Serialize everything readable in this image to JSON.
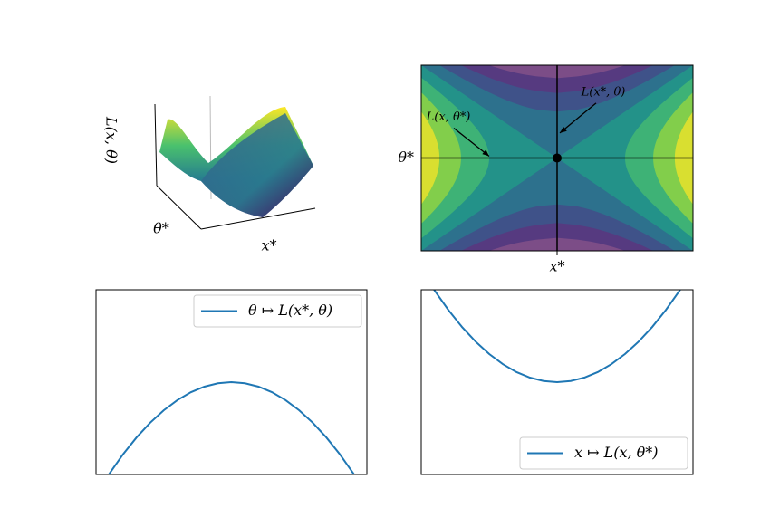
{
  "chart_data": [
    {
      "type": "surface",
      "zlabel": "L(x, θ)",
      "xlabel": "x*",
      "ylabel": "θ*"
    },
    {
      "type": "contour",
      "xlim": [
        -1,
        1
      ],
      "ylim": [
        -1,
        1
      ],
      "levels": [
        -1,
        -0.75,
        -0.5,
        -0.25,
        0,
        0.25,
        0.5,
        0.75,
        1
      ],
      "colors": [
        "#440154",
        "#46327e",
        "#365c8d",
        "#277f8e",
        "#1fa187",
        "#4ac16d",
        "#a0da39",
        "#fde725"
      ],
      "xticks": [
        {
          "value": 0,
          "label": "x*"
        }
      ],
      "yticks": [
        {
          "value": 0,
          "label": "θ*"
        }
      ],
      "point": [
        0,
        0
      ],
      "annotations": [
        {
          "text": "L(x*, θ)",
          "xy": [
            0,
            0.27
          ]
        },
        {
          "text": "L(x, θ*)",
          "xy": [
            -0.5,
            0
          ]
        }
      ]
    },
    {
      "type": "line",
      "xlim": [
        -1,
        1
      ],
      "ylim": [
        -0.82,
        0.82
      ],
      "legend": "upper right",
      "x": [
        -1,
        -0.9,
        -0.8,
        -0.7,
        -0.6,
        -0.5,
        -0.4,
        -0.3,
        -0.2,
        -0.1,
        0,
        0.1,
        0.2,
        0.3,
        0.4,
        0.5,
        0.6,
        0.7,
        0.8,
        0.9,
        1
      ],
      "series": [
        {
          "name": "θ ↦ L(x*, θ)",
          "color": "#1f77b4",
          "values": [
            -1,
            -0.81,
            -0.64,
            -0.49,
            -0.36,
            -0.25,
            -0.16,
            -0.09,
            -0.04,
            -0.01,
            0,
            -0.01,
            -0.04,
            -0.09,
            -0.16,
            -0.25,
            -0.36,
            -0.49,
            -0.64,
            -0.81,
            -1
          ]
        }
      ]
    },
    {
      "type": "line",
      "xlim": [
        -1,
        1
      ],
      "ylim": [
        -0.82,
        0.82
      ],
      "legend": "lower right",
      "x": [
        -1,
        -0.9,
        -0.8,
        -0.7,
        -0.6,
        -0.5,
        -0.4,
        -0.3,
        -0.2,
        -0.1,
        0,
        0.1,
        0.2,
        0.3,
        0.4,
        0.5,
        0.6,
        0.7,
        0.8,
        0.9,
        1
      ],
      "series": [
        {
          "name": "x ↦ L(x, θ*)",
          "color": "#1f77b4",
          "values": [
            1,
            0.81,
            0.64,
            0.49,
            0.36,
            0.25,
            0.16,
            0.09,
            0.04,
            0.01,
            0,
            0.01,
            0.04,
            0.09,
            0.16,
            0.25,
            0.36,
            0.49,
            0.64,
            0.81,
            1
          ]
        }
      ]
    }
  ]
}
